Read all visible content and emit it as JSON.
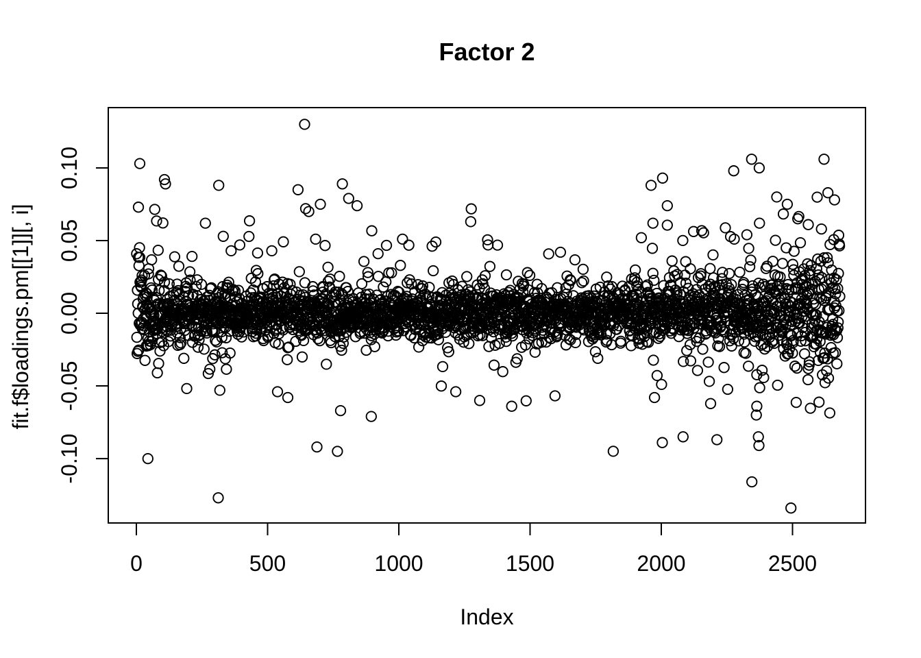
{
  "figure": {
    "background": "#ffffff",
    "foreground": "#000000"
  },
  "chart_data": {
    "type": "scatter",
    "title": "Factor 2",
    "xlabel": "Index",
    "ylabel": "fit.f$loadings.pm[[1]][, i]",
    "legend": null,
    "grid": false,
    "x_ticks": [
      0,
      500,
      1000,
      1500,
      2000,
      2500
    ],
    "x_tick_labels": [
      "0",
      "500",
      "1000",
      "1500",
      "2000",
      "2500"
    ],
    "y_ticks": [
      -0.1,
      -0.05,
      0.0,
      0.05,
      0.1
    ],
    "y_tick_labels": [
      "-0.10",
      "-0.05",
      "0.00",
      "0.05",
      "0.10"
    ],
    "xlim": [
      -107,
      2778
    ],
    "ylim": [
      -0.1443,
      0.1415
    ],
    "n_points": 2680,
    "x_range_data": [
      1,
      2680
    ],
    "y_range_data": [
      -0.134,
      0.131
    ],
    "marker": {
      "shape": "open-circle",
      "radius_px": 7.2,
      "stroke_px": 1.9,
      "color": "#000000"
    },
    "point_cloud_model": {
      "description": "y-values concentrated in a dense band near 0 (solid-black overlap), heavier spread at both index extremes (funnel at right end), rare outliers to +/-0.13",
      "seed": 7,
      "n": 2680,
      "mixture": [
        {
          "weight": 0.8,
          "sd": 0.0082
        },
        {
          "weight": 0.145,
          "sd": 0.0165
        },
        {
          "weight": 0.045,
          "sd": 0.026
        },
        {
          "weight": 0.01,
          "sd": 0.036
        }
      ],
      "left_edge_boost": {
        "amplitude": 1.15,
        "decay": 110
      },
      "right_edge_boost": {
        "amplitude": 1.9,
        "decay": 280
      },
      "clip_y": [
        -0.134,
        0.131
      ]
    },
    "outlier_points": [
      [
        13,
        0.103
      ],
      [
        8,
        0.073
      ],
      [
        44,
        -0.1
      ],
      [
        107,
        0.092
      ],
      [
        111,
        0.089
      ],
      [
        263,
        0.062
      ],
      [
        314,
        0.088
      ],
      [
        312,
        -0.127
      ],
      [
        318,
        -0.053
      ],
      [
        394,
        0.047
      ],
      [
        361,
        0.043
      ],
      [
        516,
        0.043
      ],
      [
        538,
        -0.054
      ],
      [
        577,
        -0.058
      ],
      [
        616,
        0.085
      ],
      [
        641,
        0.13
      ],
      [
        645,
        0.072
      ],
      [
        657,
        0.07
      ],
      [
        683,
        0.051
      ],
      [
        701,
        0.075
      ],
      [
        688,
        -0.092
      ],
      [
        766,
        -0.095
      ],
      [
        778,
        -0.067
      ],
      [
        785,
        0.089
      ],
      [
        809,
        0.079
      ],
      [
        841,
        0.074
      ],
      [
        895,
        -0.071
      ],
      [
        921,
        0.041
      ],
      [
        1014,
        0.051
      ],
      [
        1274,
        0.063
      ],
      [
        1340,
        0.047
      ],
      [
        1616,
        0.042
      ],
      [
        1217,
        -0.054
      ],
      [
        1308,
        -0.06
      ],
      [
        1430,
        -0.064
      ],
      [
        1924,
        0.052
      ],
      [
        1961,
        0.088
      ],
      [
        1968,
        0.062
      ],
      [
        2005,
        0.093
      ],
      [
        2023,
        0.074
      ],
      [
        1974,
        -0.058
      ],
      [
        2004,
        -0.089
      ],
      [
        2083,
        -0.085
      ],
      [
        2212,
        -0.087
      ],
      [
        2276,
        0.098
      ],
      [
        2278,
        0.051
      ],
      [
        2326,
        0.054
      ],
      [
        2344,
        0.106
      ],
      [
        2345,
        -0.116
      ],
      [
        2362,
        -0.07
      ],
      [
        2364,
        -0.064
      ],
      [
        2370,
        -0.085
      ],
      [
        2372,
        -0.091
      ],
      [
        2373,
        0.1
      ],
      [
        2374,
        0.062
      ],
      [
        2440,
        0.08
      ],
      [
        2480,
        0.075
      ],
      [
        2494,
        -0.134
      ],
      [
        2520,
        0.065
      ],
      [
        2560,
        0.061
      ],
      [
        2610,
        0.058
      ],
      [
        2620,
        0.106
      ],
      [
        2660,
        0.078
      ]
    ]
  }
}
